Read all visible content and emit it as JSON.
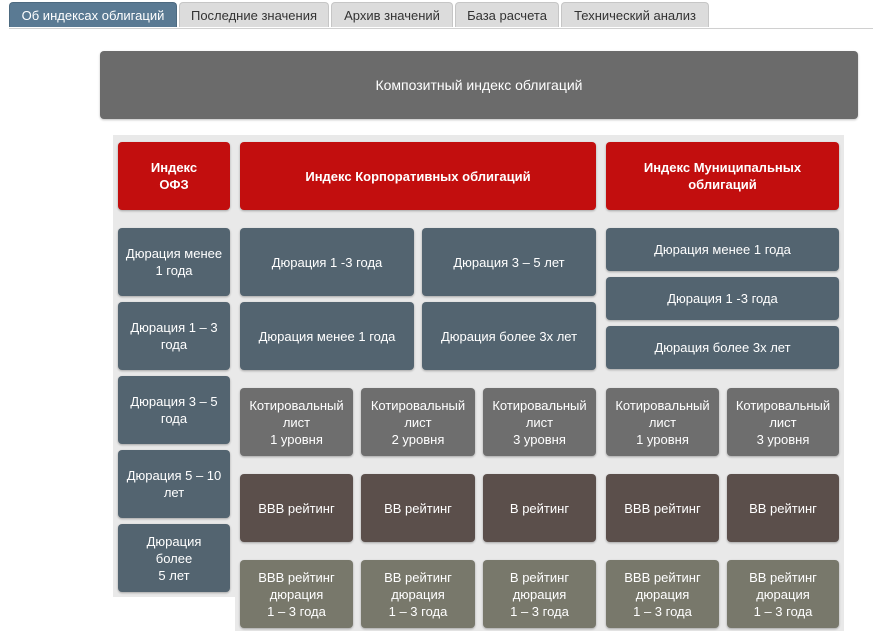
{
  "tabs": [
    {
      "label": "Об индексах облигаций",
      "active": true
    },
    {
      "label": "Последние значения",
      "active": false
    },
    {
      "label": "Архив значений",
      "active": false
    },
    {
      "label": "База расчета",
      "active": false
    },
    {
      "label": "Технический анализ",
      "active": false
    }
  ],
  "composite": {
    "label": "Композитный индекс облигаций"
  },
  "ofz": {
    "header": "Индекс\nОФЗ",
    "durations": [
      "Дюрация менее\n1 года",
      "Дюрация 1 – 3\nгода",
      "Дюрация 3 – 5\nгода",
      "Дюрация 5 – 10\nлет",
      "Дюрация\nболее\n5 лет"
    ]
  },
  "corporate": {
    "header": "Индекс Корпоративных облигаций",
    "durations": [
      "Дюрация 1 -3 года",
      "Дюрация 3 – 5 лет",
      "Дюрация менее 1 года",
      "Дюрация более 3х лет"
    ],
    "levels": [
      "Котировальный\nлист\n1 уровня",
      "Котировальный\nлист\n2 уровня",
      "Котировальный\nлист\n3 уровня"
    ],
    "ratings": [
      "BBB рейтинг",
      "BB рейтинг",
      "B рейтинг"
    ],
    "rating_durations": [
      "BBB рейтинг\nдюрация\n1 – 3 года",
      "BB рейтинг\nдюрация\n1 – 3 года",
      "B рейтинг\nдюрация\n1 – 3 года"
    ]
  },
  "municipal": {
    "header": "Индекс Муниципальных\nоблигаций",
    "durations": [
      "Дюрация менее 1 года",
      "Дюрация 1 -3 года",
      "Дюрация более 3х лет"
    ],
    "levels": [
      "Котировальный\nлист\n1 уровня",
      "Котировальный\nлист\n3 уровня"
    ],
    "ratings": [
      "BBB рейтинг",
      "BB рейтинг"
    ],
    "rating_durations": [
      "BBB рейтинг\nдюрация\n1 – 3 года",
      "BB рейтинг\nдюрация\n1 – 3 года"
    ]
  }
}
